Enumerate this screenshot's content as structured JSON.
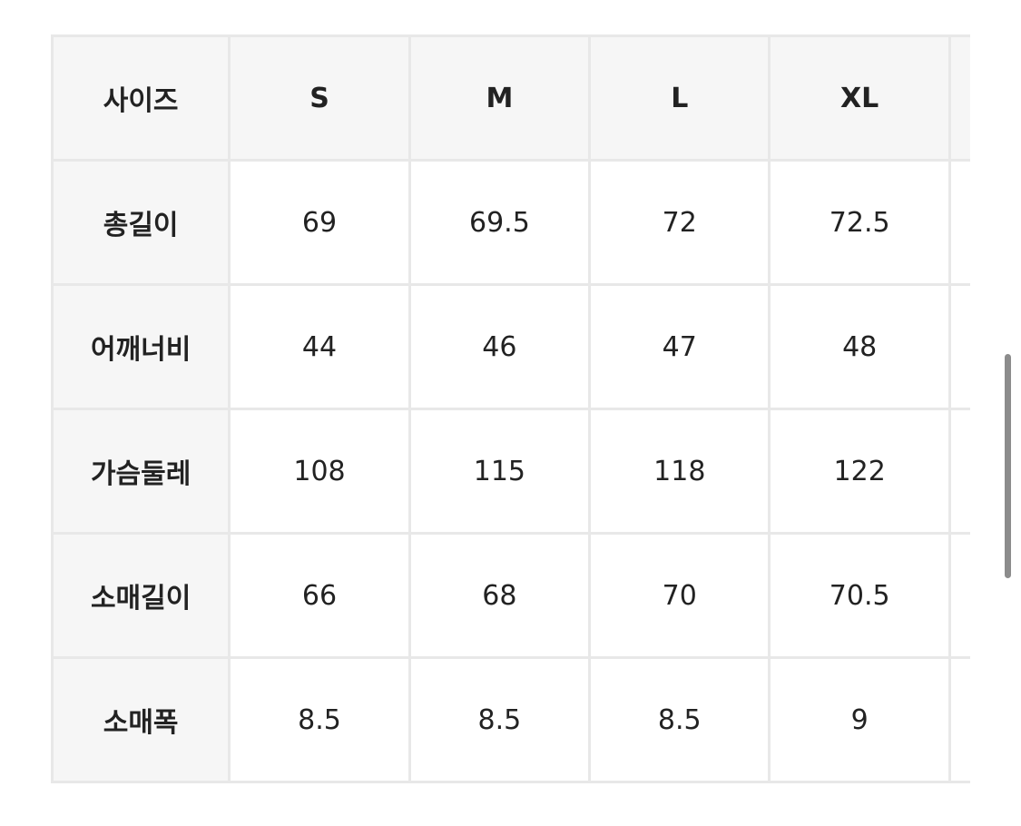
{
  "table": {
    "header": [
      "사이즈",
      "S",
      "M",
      "L",
      "XL",
      ""
    ],
    "rows": [
      {
        "label": "총길이",
        "values": [
          "69",
          "69.5",
          "72",
          "72.5",
          ""
        ]
      },
      {
        "label": "어깨너비",
        "values": [
          "44",
          "46",
          "47",
          "48",
          ""
        ]
      },
      {
        "label": "가슴둘레",
        "values": [
          "108",
          "115",
          "118",
          "122",
          ""
        ]
      },
      {
        "label": "소매길이",
        "values": [
          "66",
          "68",
          "70",
          "70.5",
          ""
        ]
      },
      {
        "label": "소매폭",
        "values": [
          "8.5",
          "8.5",
          "8.5",
          "9",
          ""
        ]
      }
    ]
  }
}
